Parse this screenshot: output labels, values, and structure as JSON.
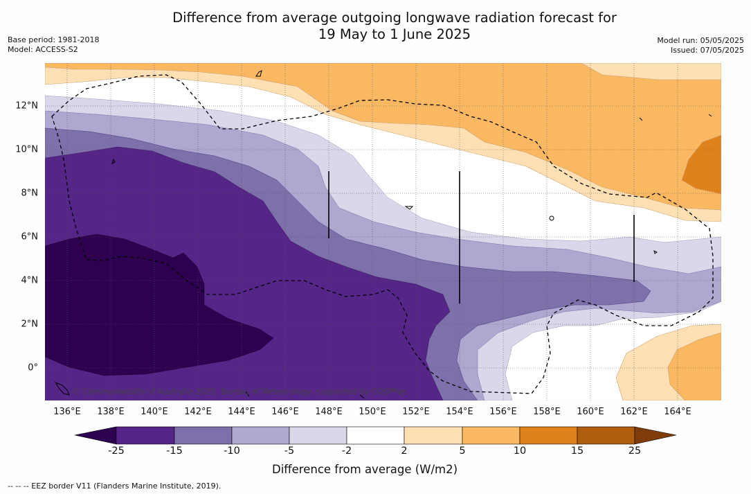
{
  "title": {
    "line1": "Difference from average outgoing longwave radiation forecast for",
    "line2": "19 May to 1 June 2025"
  },
  "meta_left": {
    "base_period": "Base period: 1981-2018",
    "model": "Model: ACCESS-S2"
  },
  "meta_right": {
    "model_run": "Model run: 05/05/2025",
    "issued": "Issued: 07/05/2025"
  },
  "map": {
    "lon_range": [
      135,
      166
    ],
    "lat_range": [
      -1.5,
      14
    ],
    "x_ticks": [
      "136°E",
      "138°E",
      "140°E",
      "142°E",
      "144°E",
      "146°E",
      "148°E",
      "150°E",
      "152°E",
      "154°E",
      "156°E",
      "158°E",
      "160°E",
      "162°E",
      "164°E"
    ],
    "y_ticks": [
      "0°",
      "2°N",
      "4°N",
      "6°N",
      "8°N",
      "10°N",
      "12°N"
    ],
    "credit": "© Commonwealth of Australia 2025, Bureau of Meteorology, supported by COSPPac",
    "grid": "dotted"
  },
  "colorbar": {
    "label": "Difference from average (W/m2)",
    "ticks": [
      "-25",
      "-15",
      "-10",
      "-5",
      "-2",
      "2",
      "5",
      "10",
      "15",
      "25"
    ],
    "colors": {
      "below": "#2d0050",
      "bins": [
        "#562588",
        "#7e70aa",
        "#aea8d0",
        "#d8d8ea",
        "#ffffff",
        "#fee0b4",
        "#fbb862",
        "#e0821c",
        "#b05c0e"
      ],
      "above": "#7f3b08"
    }
  },
  "footnote": "--  --  -- EEZ border V11 (Flanders Marine Institute, 2019)."
}
